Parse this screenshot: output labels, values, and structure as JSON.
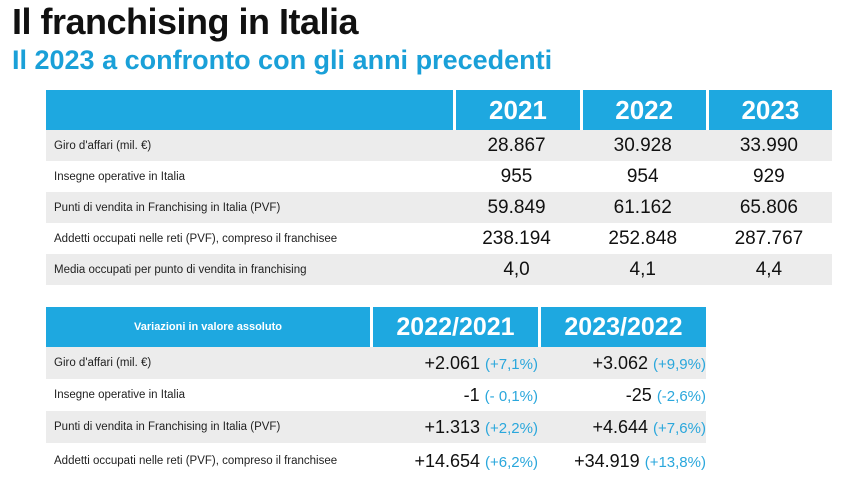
{
  "header": {
    "title": "Il franchising in Italia",
    "subtitle": "Il 2023 a confronto con gli anni precedenti"
  },
  "table1": {
    "years": [
      "2021",
      "2022",
      "2023"
    ],
    "rows": [
      {
        "label": "Giro d'affari (mil. €)",
        "values": [
          "28.867",
          "30.928",
          "33.990"
        ]
      },
      {
        "label": "Insegne operative in Italia",
        "values": [
          "955",
          "954",
          "929"
        ]
      },
      {
        "label": "Punti di vendita in Franchising in Italia (PVF)",
        "values": [
          "59.849",
          "61.162",
          "65.806"
        ]
      },
      {
        "label": "Addetti occupati nelle reti (PVF), compreso il franchisee",
        "values": [
          "238.194",
          "252.848",
          "287.767"
        ]
      },
      {
        "label": "Media occupati per punto di vendita in franchising",
        "values": [
          "4,0",
          "4,1",
          "4,4"
        ]
      }
    ]
  },
  "table2": {
    "header_label": "Variazioni in valore assoluto",
    "periods": [
      "2022/2021",
      "2023/2022"
    ],
    "rows": [
      {
        "label": "Giro d'affari (mil. €)",
        "values": [
          {
            "abs": "+2.061",
            "pct": "(+7,1%)"
          },
          {
            "abs": "+3.062",
            "pct": "(+9,9%)"
          }
        ]
      },
      {
        "label": "Insegne operative in Italia",
        "values": [
          {
            "abs": "-1",
            "pct": "(- 0,1%)"
          },
          {
            "abs": "-25",
            "pct": "(-2,6%)"
          }
        ]
      },
      {
        "label": "Punti di vendita in Franchising in Italia (PVF)",
        "values": [
          {
            "abs": "+1.313",
            "pct": "(+2,2%)"
          },
          {
            "abs": "+4.644",
            "pct": "(+7,6%)"
          }
        ]
      },
      {
        "label": "Addetti occupati nelle reti (PVF), compreso il franchisee",
        "values": [
          {
            "abs": "+14.654",
            "pct": "(+6,2%)"
          },
          {
            "abs": "+34.919",
            "pct": "(+13,8%)"
          }
        ]
      }
    ]
  }
}
